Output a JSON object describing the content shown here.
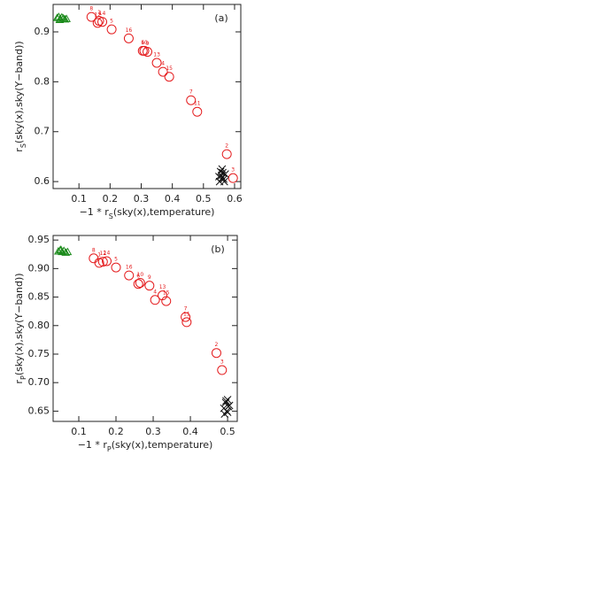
{
  "chart_data": [
    {
      "type": "scatter",
      "annotation": "(a)",
      "xlabel": {
        "prefix": "−1 * r",
        "sub": "S",
        "suffix": "(sky(x),temperature)"
      },
      "ylabel": {
        "prefix": "r",
        "sub": "S",
        "suffix": "(sky(x),sky(Y−band))"
      },
      "xlim": [
        0.017,
        0.62
      ],
      "ylim": [
        0.586,
        0.955
      ],
      "xticks": [
        0.1,
        0.2,
        0.3,
        0.4,
        0.5,
        0.6
      ],
      "yticks": [
        0.6,
        0.7,
        0.8,
        0.9
      ],
      "series": [
        {
          "color": "#e41a1c",
          "marker": "circle",
          "labels": [
            "8",
            "1",
            "12",
            "14",
            "5",
            "16",
            "6",
            "10",
            "9",
            "13",
            "4",
            "15",
            "7",
            "11",
            "2",
            "3"
          ],
          "x": [
            0.14,
            0.165,
            0.16,
            0.175,
            0.205,
            0.26,
            0.305,
            0.31,
            0.32,
            0.35,
            0.37,
            0.39,
            0.46,
            0.48,
            0.575,
            0.595
          ],
          "values": [
            0.93,
            0.922,
            0.918,
            0.92,
            0.905,
            0.887,
            0.862,
            0.862,
            0.86,
            0.838,
            0.82,
            0.81,
            0.763,
            0.74,
            0.655,
            0.607
          ]
        },
        {
          "color": "#1a8a1a",
          "marker": "triangle",
          "x": [
            0.03,
            0.035,
            0.04,
            0.045,
            0.05,
            0.055,
            0.06,
            0.038
          ],
          "values": [
            0.928,
            0.93,
            0.926,
            0.929,
            0.927,
            0.925,
            0.926,
            0.924
          ]
        },
        {
          "color": "#111111",
          "marker": "cross",
          "x": [
            0.55,
            0.555,
            0.56,
            0.565,
            0.57,
            0.552,
            0.558,
            0.562,
            0.567,
            0.56
          ],
          "values": [
            0.61,
            0.62,
            0.625,
            0.605,
            0.615,
            0.6,
            0.612,
            0.618,
            0.6,
            0.607
          ]
        }
      ]
    },
    {
      "type": "scatter",
      "annotation": "(b)",
      "xlabel": {
        "prefix": "−1 * r",
        "sub": "P",
        "suffix": "(sky(x),temperature)"
      },
      "ylabel": {
        "prefix": "r",
        "sub": "P",
        "suffix": "(sky(x),sky(Y−band))"
      },
      "xlim": [
        0.031,
        0.526
      ],
      "ylim": [
        0.632,
        0.958
      ],
      "xticks": [
        0.1,
        0.2,
        0.3,
        0.4,
        0.5
      ],
      "yticks": [
        0.65,
        {
          "value": 0.7,
          "label": "0.70"
        },
        0.75,
        {
          "value": 0.8,
          "label": "0.80"
        },
        0.85,
        {
          "value": 0.9,
          "label": "0.90"
        },
        0.95
      ],
      "series": [
        {
          "color": "#e41a1c",
          "marker": "circle",
          "labels": [
            "8",
            "1",
            "12",
            "14",
            "5",
            "16",
            "6",
            "10",
            "9",
            "4",
            "13",
            "15",
            "7",
            "11",
            "2",
            "3"
          ],
          "x": [
            0.14,
            0.155,
            0.165,
            0.175,
            0.2,
            0.235,
            0.26,
            0.265,
            0.29,
            0.305,
            0.325,
            0.335,
            0.387,
            0.39,
            0.47,
            0.485
          ],
          "values": [
            0.918,
            0.91,
            0.912,
            0.913,
            0.902,
            0.888,
            0.873,
            0.875,
            0.87,
            0.845,
            0.853,
            0.843,
            0.815,
            0.806,
            0.752,
            0.722
          ]
        },
        {
          "color": "#1a8a1a",
          "marker": "triangle",
          "x": [
            0.045,
            0.05,
            0.055,
            0.06,
            0.065,
            0.07,
            0.052
          ],
          "values": [
            0.93,
            0.932,
            0.929,
            0.931,
            0.928,
            0.929,
            0.933
          ]
        },
        {
          "color": "#111111",
          "marker": "cross",
          "x": [
            0.49,
            0.495,
            0.5,
            0.505,
            0.492,
            0.498,
            0.502,
            0.496,
            0.5
          ],
          "values": [
            0.655,
            0.665,
            0.67,
            0.66,
            0.645,
            0.65,
            0.658,
            0.668,
            0.648
          ]
        }
      ]
    }
  ]
}
